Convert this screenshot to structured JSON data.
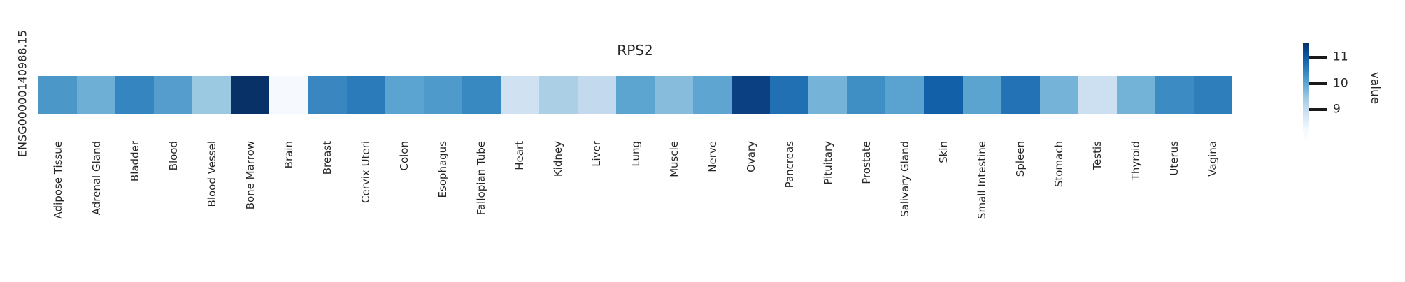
{
  "figure": {
    "title": "RPS2",
    "row_label": "ENSG00000140988.15",
    "colorbar": {
      "label": "value",
      "tick_labels": [
        "11",
        "10",
        "9"
      ]
    },
    "text_color": "#262626",
    "tick_color": "#1a1a1a"
  },
  "chart_data": {
    "type": "heatmap",
    "title": "RPS2",
    "rows": [
      "ENSG00000140988.15"
    ],
    "categories": [
      "Adipose Tissue",
      "Adrenal Gland",
      "Bladder",
      "Blood",
      "Blood Vessel",
      "Bone Marrow",
      "Brain",
      "Breast",
      "Cervix Uteri",
      "Colon",
      "Esophagus",
      "Fallopian Tube",
      "Heart",
      "Kidney",
      "Liver",
      "Lung",
      "Muscle",
      "Nerve",
      "Ovary",
      "Pancreas",
      "Pituitary",
      "Prostate",
      "Salivary Gland",
      "Skin",
      "Small Intestine",
      "Spleen",
      "Stomach",
      "Testis",
      "Thyroid",
      "Uterus",
      "Vagina"
    ],
    "values": [
      10.2,
      9.8,
      10.4,
      10.1,
      9.5,
      11.5,
      8.3,
      10.4,
      10.5,
      10.0,
      10.1,
      10.3,
      8.8,
      9.3,
      9.0,
      10.0,
      9.6,
      10.0,
      11.2,
      10.7,
      9.8,
      10.3,
      10.0,
      10.9,
      10.0,
      10.7,
      9.8,
      8.8,
      9.8,
      10.3,
      10.5
    ],
    "cell_colors": [
      "#4a97c8",
      "#6eafd5",
      "#3585c0",
      "#549dcc",
      "#9cc9e2",
      "#083168",
      "#f6fafe",
      "#3a86c0",
      "#2b7bba",
      "#5ba3d0",
      "#4e9acb",
      "#3889c2",
      "#d0e2f2",
      "#abd0e5",
      "#c3daee",
      "#5da5d1",
      "#87bcdc",
      "#5ea6d1",
      "#0b4182",
      "#2170b4",
      "#75b3d8",
      "#3f8ec4",
      "#5aa2cf",
      "#1160a8",
      "#5ca4d0",
      "#2272b5",
      "#75b4d8",
      "#cde0f1",
      "#74b3d8",
      "#3c8cc3",
      "#2e7ebc"
    ],
    "colormap": "Blues",
    "vmin": 8.2,
    "vmax": 11.5,
    "colorbar_label": "value",
    "colorbar_ticks": [
      11,
      10,
      9
    ],
    "colorbar_extend": "min",
    "legend_position": "right",
    "xlabel": "",
    "ylabel": ""
  }
}
